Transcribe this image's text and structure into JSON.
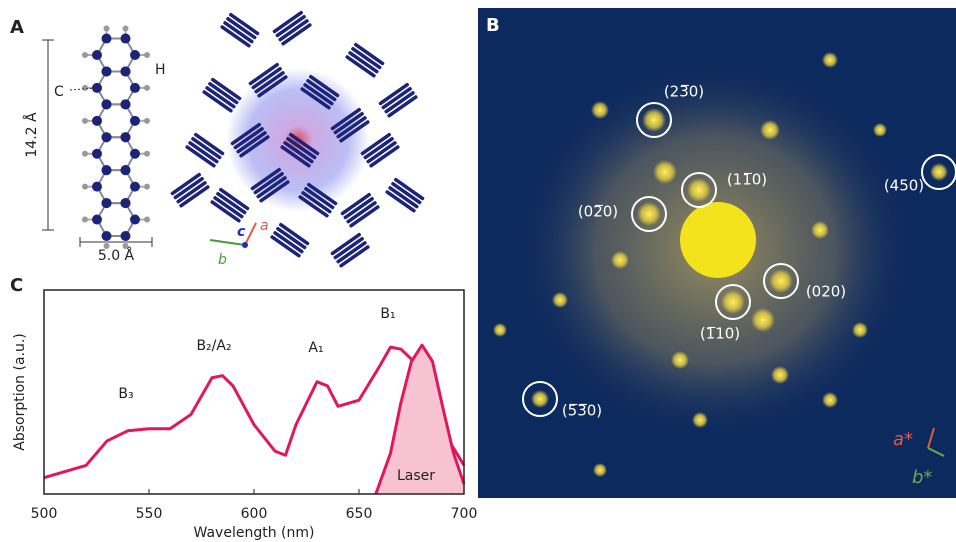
{
  "panel_a": {
    "label": "A",
    "atom_c": "C",
    "atom_h": "H",
    "height": "14.2 Å",
    "width": "5.0  Å",
    "axis_c": "c",
    "axis_a": "a",
    "axis_b": "b"
  },
  "panel_b": {
    "label": "B",
    "reflections": [
      "(23̅0)",
      "(450)",
      "(11̅0)",
      "(02̅0)",
      "(020)",
      "(1̅10)",
      "(5̅3̅0)"
    ],
    "axis_a": "a*",
    "axis_b": "b*"
  },
  "chart_data": {
    "type": "line",
    "panel_label": "C",
    "xlabel": "Wavelength (nm)",
    "ylabel": "Absorption (a.u.)",
    "annotations": [
      "B₃",
      "B₂/A₂",
      "A₁",
      "B₁"
    ],
    "x": [
      500,
      510,
      520,
      530,
      540,
      550,
      560,
      570,
      580,
      585,
      590,
      600,
      610,
      615,
      620,
      630,
      635,
      640,
      650,
      660,
      665,
      670,
      675,
      680,
      690,
      700
    ],
    "series": [
      {
        "color": "#e0175a",
        "values": [
          0.08,
          0.11,
          0.14,
          0.26,
          0.31,
          0.32,
          0.32,
          0.39,
          0.57,
          0.58,
          0.53,
          0.34,
          0.21,
          0.19,
          0.34,
          0.55,
          0.53,
          0.43,
          0.46,
          0.63,
          0.72,
          0.71,
          0.66,
          0.51,
          0.31,
          0.14
        ]
      },
      {
        "name": "Laser",
        "color": "#e0175a",
        "fill": "#f7c3d3",
        "x": [
          658,
          665,
          670,
          675,
          680,
          685,
          690,
          695,
          700
        ],
        "values": [
          0,
          0.2,
          0.45,
          0.65,
          0.73,
          0.65,
          0.42,
          0.2,
          0.05
        ]
      }
    ],
    "xlim": [
      500,
      700
    ],
    "ylim": [
      0,
      1
    ],
    "xticks": [
      500,
      550,
      600,
      650,
      700
    ]
  }
}
